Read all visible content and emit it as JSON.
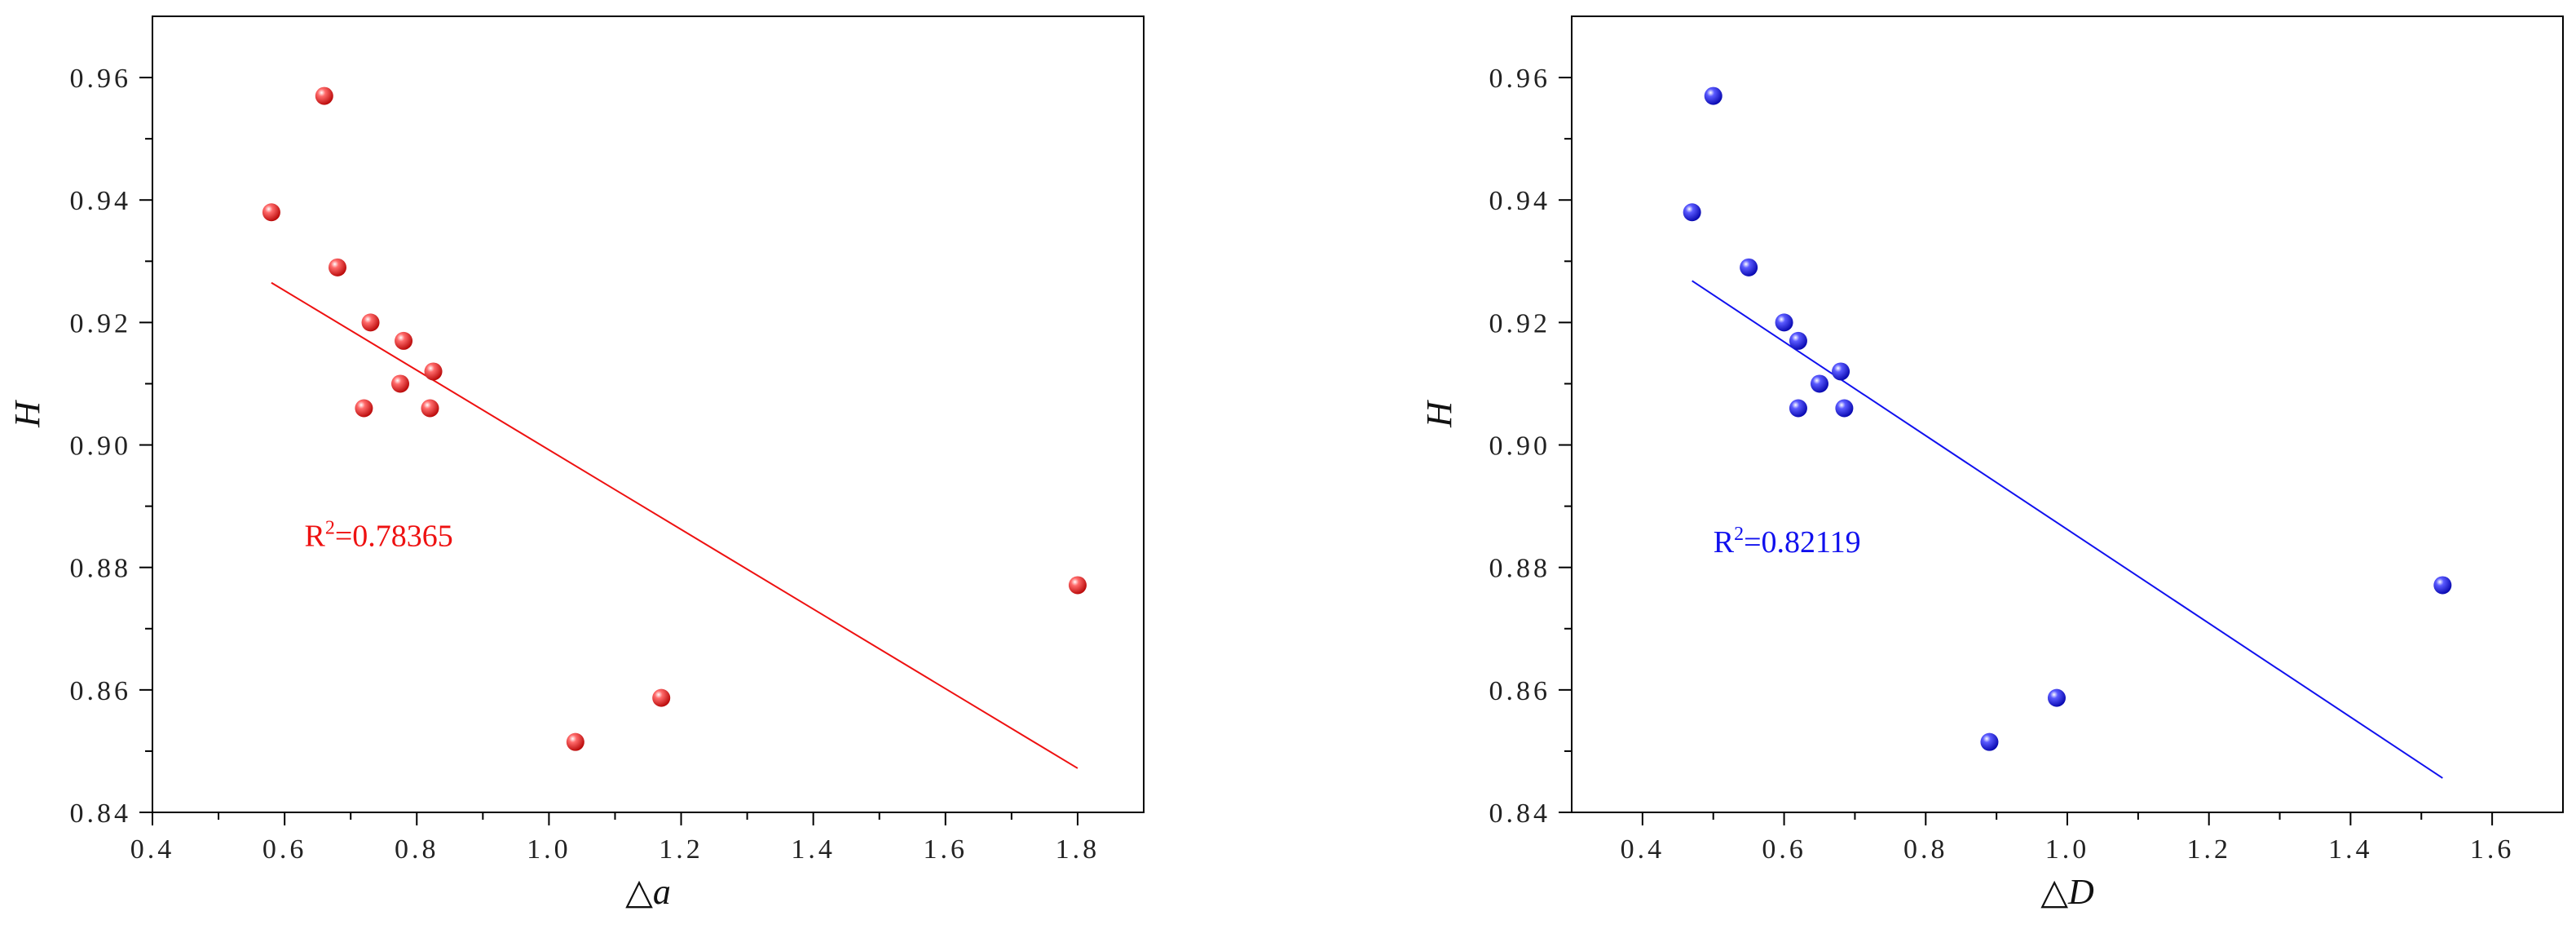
{
  "chart_data": [
    {
      "type": "scatter",
      "title": "",
      "xlabel": {
        "symbol": "△",
        "var": "a"
      },
      "ylabel": "H",
      "xlim": [
        0.4,
        1.9
      ],
      "ylim": [
        0.84,
        0.97
      ],
      "xticks": [
        {
          "v": 0.4,
          "label": "0.4"
        },
        {
          "v": 0.6,
          "label": "0.6"
        },
        {
          "v": 0.8,
          "label": "0.8"
        },
        {
          "v": 1.0,
          "label": "1.0"
        },
        {
          "v": 1.2,
          "label": "1.2"
        },
        {
          "v": 1.4,
          "label": "1.4"
        },
        {
          "v": 1.6,
          "label": "1.6"
        },
        {
          "v": 1.8,
          "label": "1.8"
        }
      ],
      "yticks": [
        {
          "v": 0.84,
          "label": "0.84"
        },
        {
          "v": 0.86,
          "label": "0.86"
        },
        {
          "v": 0.88,
          "label": "0.88"
        },
        {
          "v": 0.9,
          "label": "0.90"
        },
        {
          "v": 0.92,
          "label": "0.92"
        },
        {
          "v": 0.94,
          "label": "0.94"
        },
        {
          "v": 0.96,
          "label": "0.96"
        }
      ],
      "grid": false,
      "color": "#ee1111",
      "points": [
        {
          "x": 0.58,
          "y": 0.938
        },
        {
          "x": 0.66,
          "y": 0.957
        },
        {
          "x": 0.68,
          "y": 0.929
        },
        {
          "x": 0.73,
          "y": 0.92
        },
        {
          "x": 0.72,
          "y": 0.906
        },
        {
          "x": 0.78,
          "y": 0.917
        },
        {
          "x": 0.775,
          "y": 0.91
        },
        {
          "x": 0.825,
          "y": 0.912
        },
        {
          "x": 0.82,
          "y": 0.906
        },
        {
          "x": 1.04,
          "y": 0.8515
        },
        {
          "x": 1.17,
          "y": 0.8587
        },
        {
          "x": 1.8,
          "y": 0.8771
        }
      ],
      "fit": {
        "x": [
          0.58,
          1.8
        ],
        "y": [
          0.9265,
          0.8472
        ]
      },
      "r2": {
        "label": "R",
        "sup": "2",
        "value": "=0.78365",
        "x": 0.63,
        "y": 0.8835
      }
    },
    {
      "type": "scatter",
      "title": "",
      "xlabel": {
        "symbol": "△",
        "var": "D"
      },
      "ylabel": "H",
      "xlim": [
        0.3,
        1.7
      ],
      "ylim": [
        0.84,
        0.97
      ],
      "xticks": [
        {
          "v": 0.4,
          "label": "0.4"
        },
        {
          "v": 0.6,
          "label": "0.6"
        },
        {
          "v": 0.8,
          "label": "0.8"
        },
        {
          "v": 1.0,
          "label": "1.0"
        },
        {
          "v": 1.2,
          "label": "1.2"
        },
        {
          "v": 1.4,
          "label": "1.4"
        },
        {
          "v": 1.6,
          "label": "1.6"
        }
      ],
      "yticks": [
        {
          "v": 0.84,
          "label": "0.84"
        },
        {
          "v": 0.86,
          "label": "0.86"
        },
        {
          "v": 0.88,
          "label": "0.88"
        },
        {
          "v": 0.9,
          "label": "0.90"
        },
        {
          "v": 0.92,
          "label": "0.92"
        },
        {
          "v": 0.94,
          "label": "0.94"
        },
        {
          "v": 0.96,
          "label": "0.96"
        }
      ],
      "grid": false,
      "color": "#1111ee",
      "points": [
        {
          "x": 0.47,
          "y": 0.938
        },
        {
          "x": 0.5,
          "y": 0.957
        },
        {
          "x": 0.55,
          "y": 0.929
        },
        {
          "x": 0.6,
          "y": 0.92
        },
        {
          "x": 0.62,
          "y": 0.906
        },
        {
          "x": 0.62,
          "y": 0.917
        },
        {
          "x": 0.65,
          "y": 0.91
        },
        {
          "x": 0.68,
          "y": 0.912
        },
        {
          "x": 0.685,
          "y": 0.906
        },
        {
          "x": 0.89,
          "y": 0.8515
        },
        {
          "x": 0.985,
          "y": 0.8587
        },
        {
          "x": 1.53,
          "y": 0.8771
        }
      ],
      "fit": {
        "x": [
          0.47,
          1.53
        ],
        "y": [
          0.9268,
          0.8456
        ]
      },
      "r2": {
        "label": "R",
        "sup": "2",
        "value": "=0.82119",
        "x": 0.5,
        "y": 0.8825
      }
    }
  ]
}
